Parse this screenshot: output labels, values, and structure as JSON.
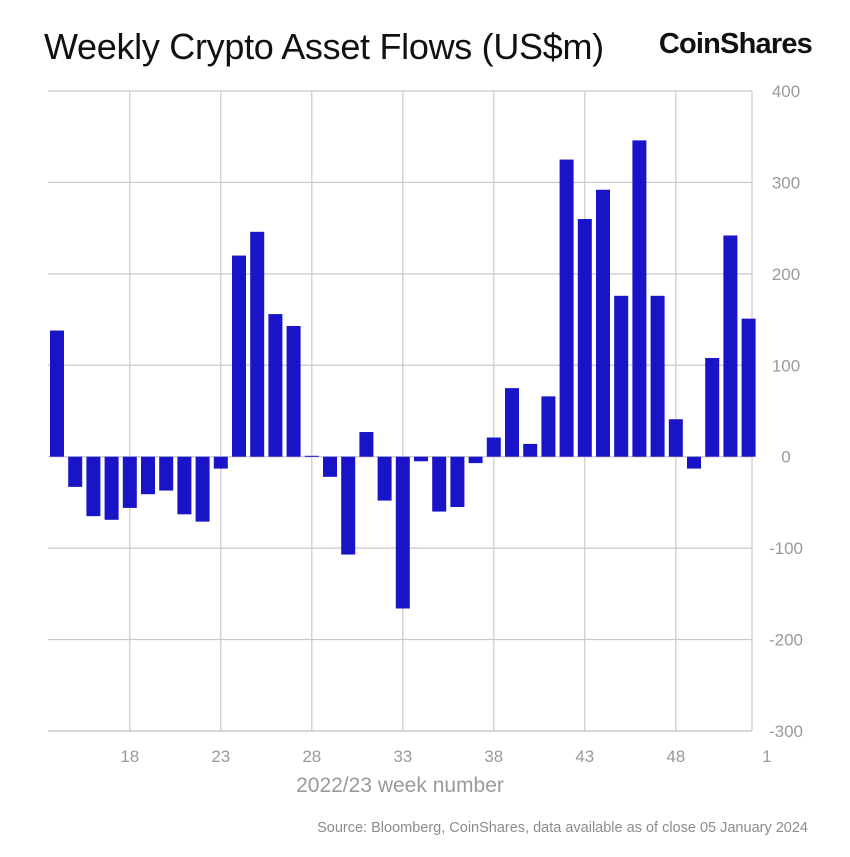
{
  "header": {
    "title": "Weekly Crypto Asset Flows (US$m)",
    "brand": "CoinShares"
  },
  "footer": {
    "source": "Source: Bloomberg, CoinShares, data available as of close 05 January 2024"
  },
  "colors": {
    "bar": "#1a14c8",
    "grid": "#c8c8c8",
    "tick_text": "#9a9a9a"
  },
  "chart_data": {
    "type": "bar",
    "title": "Weekly Crypto Asset Flows (US$m)",
    "xlabel": "2022/23 week number",
    "ylabel": "",
    "ylim": [
      -300,
      400
    ],
    "yticks": [
      400,
      300,
      200,
      100,
      0,
      -100,
      -200,
      -300
    ],
    "y_axis_position": "right",
    "grid": true,
    "xtick_labels": [
      "18",
      "23",
      "28",
      "33",
      "38",
      "43",
      "48",
      "1"
    ],
    "xtick_categories": [
      "18",
      "23",
      "28",
      "33",
      "38",
      "43",
      "48",
      "1"
    ],
    "categories": [
      "14",
      "15",
      "16",
      "17",
      "18",
      "19",
      "20",
      "21",
      "22",
      "23",
      "24",
      "25",
      "26",
      "27",
      "28",
      "29",
      "30",
      "31",
      "32",
      "33",
      "34",
      "35",
      "36",
      "37",
      "38",
      "39",
      "40",
      "41",
      "42",
      "43",
      "44",
      "45",
      "46",
      "47",
      "48",
      "49",
      "50",
      "51",
      "52",
      "1"
    ],
    "values": [
      138,
      -33,
      -65,
      -69,
      -56,
      -41,
      -37,
      -63,
      -71,
      -13,
      220,
      246,
      156,
      143,
      1,
      -22,
      -107,
      27,
      -48,
      -166,
      -5,
      -60,
      -55,
      -7,
      21,
      75,
      14,
      66,
      325,
      260,
      292,
      176,
      346,
      176,
      41,
      -13,
      108,
      242,
      151,
      null
    ]
  }
}
